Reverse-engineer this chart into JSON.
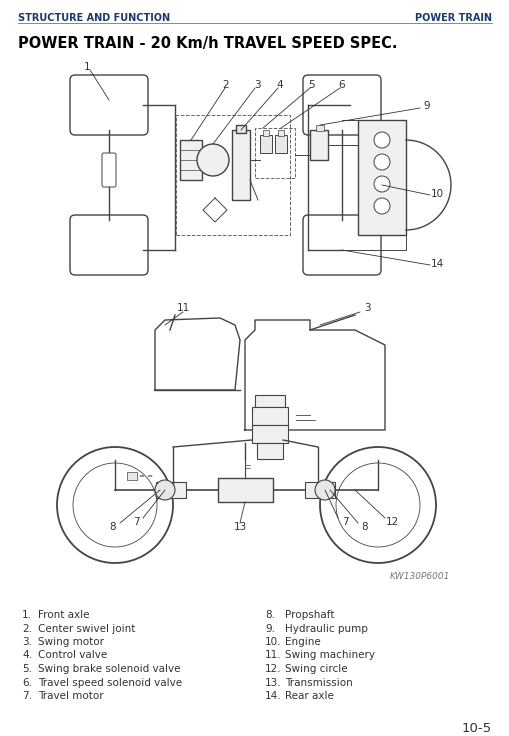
{
  "header_left": "STRUCTURE AND FUNCTION",
  "header_right": "POWER TRAIN",
  "title": "POWER TRAIN - 20 Km/h TRAVEL SPEED SPEC.",
  "page_number": "10-5",
  "legend_left": [
    [
      "1.",
      "Front axle"
    ],
    [
      "2.",
      "Center swivel joint"
    ],
    [
      "3.",
      "Swing motor"
    ],
    [
      "4.",
      "Control valve"
    ],
    [
      "5.",
      "Swing brake solenoid valve"
    ],
    [
      "6.",
      "Travel speed solenoid valve"
    ],
    [
      "7.",
      "Travel motor"
    ]
  ],
  "legend_right": [
    [
      "8.",
      "Propshaft"
    ],
    [
      "9.",
      "Hydraulic pump"
    ],
    [
      "10.",
      "Engine"
    ],
    [
      "11.",
      "Swing machinery"
    ],
    [
      "12.",
      "Swing circle"
    ],
    [
      "13.",
      "Transmission"
    ],
    [
      "14.",
      "Rear axle"
    ]
  ],
  "watermark": "KW130P6001",
  "bg_color": "#ffffff",
  "header_color": "#1a3a6b",
  "title_color": "#000000",
  "legend_color": "#333333",
  "header_line_color": "#888888",
  "diagram_color": "#444444"
}
